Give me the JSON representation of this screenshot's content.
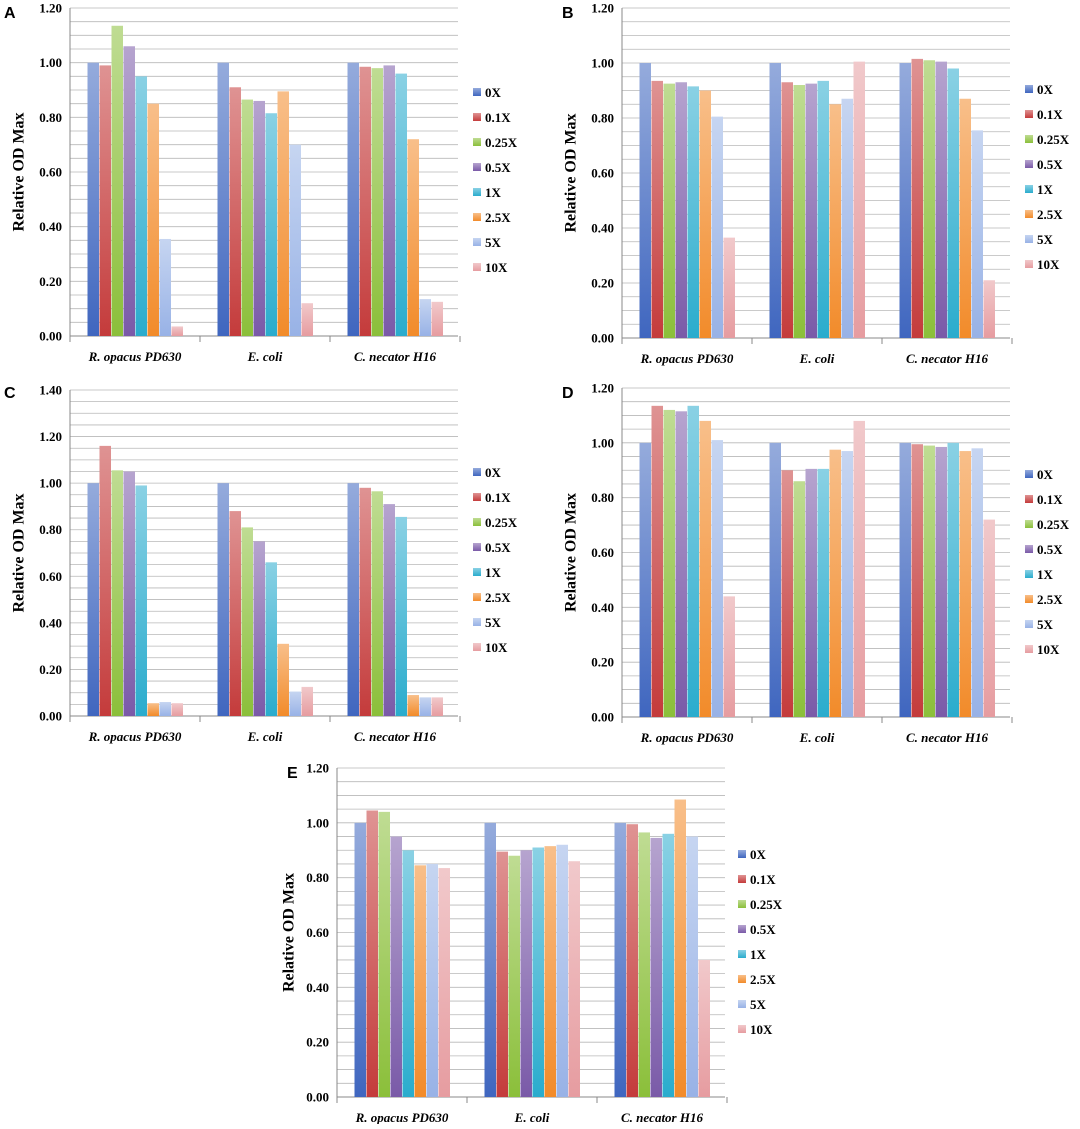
{
  "figure": {
    "legend_title": "",
    "colors": [
      "#3f66bf",
      "#c43b3b",
      "#8bbf3a",
      "#7a5aa8",
      "#2aaccd",
      "#f28b2a",
      "#98b2e6",
      "#e69ca0"
    ]
  },
  "chart_data": [
    {
      "panel": "A",
      "type": "bar",
      "ylabel": "Relative OD Max",
      "ylim": [
        0,
        1.2
      ],
      "yticks": [
        "0.00",
        "0.20",
        "0.40",
        "0.60",
        "0.80",
        "1.00",
        "1.20"
      ],
      "categories": [
        "R. opacus PD630",
        "E. coli",
        "C. necator H16"
      ],
      "series": [
        {
          "name": "0X",
          "values": [
            1.0,
            1.0,
            1.0
          ]
        },
        {
          "name": "0.1X",
          "values": [
            0.99,
            0.91,
            0.985
          ]
        },
        {
          "name": "0.25X",
          "values": [
            1.135,
            0.865,
            0.98
          ]
        },
        {
          "name": "0.5X",
          "values": [
            1.06,
            0.86,
            0.99
          ]
        },
        {
          "name": "1X",
          "values": [
            0.95,
            0.815,
            0.96
          ]
        },
        {
          "name": "2.5X",
          "values": [
            0.85,
            0.895,
            0.72
          ]
        },
        {
          "name": "5X",
          "values": [
            0.355,
            0.7,
            0.135
          ]
        },
        {
          "name": "10X",
          "values": [
            0.035,
            0.12,
            0.125
          ]
        }
      ]
    },
    {
      "panel": "B",
      "type": "bar",
      "ylabel": "Relative OD Max",
      "ylim": [
        0,
        1.2
      ],
      "yticks": [
        "0.00",
        "0.20",
        "0.40",
        "0.60",
        "0.80",
        "1.00",
        "1.20"
      ],
      "categories": [
        "R. opacus PD630",
        "E. coli",
        "C. necator H16"
      ],
      "series": [
        {
          "name": "0X",
          "values": [
            1.0,
            1.0,
            1.0
          ]
        },
        {
          "name": "0.1X",
          "values": [
            0.935,
            0.93,
            1.015
          ]
        },
        {
          "name": "0.25X",
          "values": [
            0.925,
            0.92,
            1.01
          ]
        },
        {
          "name": "0.5X",
          "values": [
            0.93,
            0.925,
            1.005
          ]
        },
        {
          "name": "1X",
          "values": [
            0.915,
            0.935,
            0.98
          ]
        },
        {
          "name": "2.5X",
          "values": [
            0.9,
            0.85,
            0.87
          ]
        },
        {
          "name": "5X",
          "values": [
            0.805,
            0.87,
            0.755
          ]
        },
        {
          "name": "10X",
          "values": [
            0.365,
            1.005,
            0.21
          ]
        }
      ]
    },
    {
      "panel": "C",
      "type": "bar",
      "ylabel": "Relative OD Max",
      "ylim": [
        0,
        1.4
      ],
      "yticks": [
        "0.00",
        "0.20",
        "0.40",
        "0.60",
        "0.80",
        "1.00",
        "1.20",
        "1.40"
      ],
      "categories": [
        "R. opacus PD630",
        "E. coli",
        "C. necator H16"
      ],
      "series": [
        {
          "name": "0X",
          "values": [
            1.0,
            1.0,
            1.0
          ]
        },
        {
          "name": "0.1X",
          "values": [
            1.16,
            0.88,
            0.98
          ]
        },
        {
          "name": "0.25X",
          "values": [
            1.055,
            0.81,
            0.965
          ]
        },
        {
          "name": "0.5X",
          "values": [
            1.05,
            0.75,
            0.91
          ]
        },
        {
          "name": "1X",
          "values": [
            0.99,
            0.66,
            0.855
          ]
        },
        {
          "name": "2.5X",
          "values": [
            0.055,
            0.31,
            0.09
          ]
        },
        {
          "name": "5X",
          "values": [
            0.06,
            0.105,
            0.08
          ]
        },
        {
          "name": "10X",
          "values": [
            0.055,
            0.125,
            0.08
          ]
        }
      ]
    },
    {
      "panel": "D",
      "type": "bar",
      "ylabel": "Relative OD Max",
      "ylim": [
        0,
        1.2
      ],
      "yticks": [
        "0.00",
        "0.20",
        "0.40",
        "0.60",
        "0.80",
        "1.00",
        "1.20"
      ],
      "categories": [
        "R. opacus PD630",
        "E. coli",
        "C. necator H16"
      ],
      "series": [
        {
          "name": "0X",
          "values": [
            1.0,
            1.0,
            1.0
          ]
        },
        {
          "name": "0.1X",
          "values": [
            1.135,
            0.9,
            0.995
          ]
        },
        {
          "name": "0.25X",
          "values": [
            1.12,
            0.86,
            0.99
          ]
        },
        {
          "name": "0.5X",
          "values": [
            1.115,
            0.905,
            0.985
          ]
        },
        {
          "name": "1X",
          "values": [
            1.135,
            0.905,
            1.0
          ]
        },
        {
          "name": "2.5X",
          "values": [
            1.08,
            0.975,
            0.97
          ]
        },
        {
          "name": "5X",
          "values": [
            1.01,
            0.97,
            0.98
          ]
        },
        {
          "name": "10X",
          "values": [
            0.44,
            1.08,
            0.72
          ]
        }
      ]
    },
    {
      "panel": "E",
      "type": "bar",
      "ylabel": "Relative OD Max",
      "ylim": [
        0,
        1.2
      ],
      "yticks": [
        "0.00",
        "0.20",
        "0.40",
        "0.60",
        "0.80",
        "1.00",
        "1.20"
      ],
      "categories": [
        "R. opacus PD630",
        "E. coli",
        "C. necator H16"
      ],
      "series": [
        {
          "name": "0X",
          "values": [
            1.0,
            1.0,
            1.0
          ]
        },
        {
          "name": "0.1X",
          "values": [
            1.045,
            0.895,
            0.995
          ]
        },
        {
          "name": "0.25X",
          "values": [
            1.04,
            0.88,
            0.965
          ]
        },
        {
          "name": "0.5X",
          "values": [
            0.95,
            0.9,
            0.945
          ]
        },
        {
          "name": "1X",
          "values": [
            0.9,
            0.91,
            0.96
          ]
        },
        {
          "name": "2.5X",
          "values": [
            0.845,
            0.915,
            1.085
          ]
        },
        {
          "name": "5X",
          "values": [
            0.85,
            0.92,
            0.95
          ]
        },
        {
          "name": "10X",
          "values": [
            0.835,
            0.86,
            0.5
          ]
        }
      ]
    }
  ]
}
